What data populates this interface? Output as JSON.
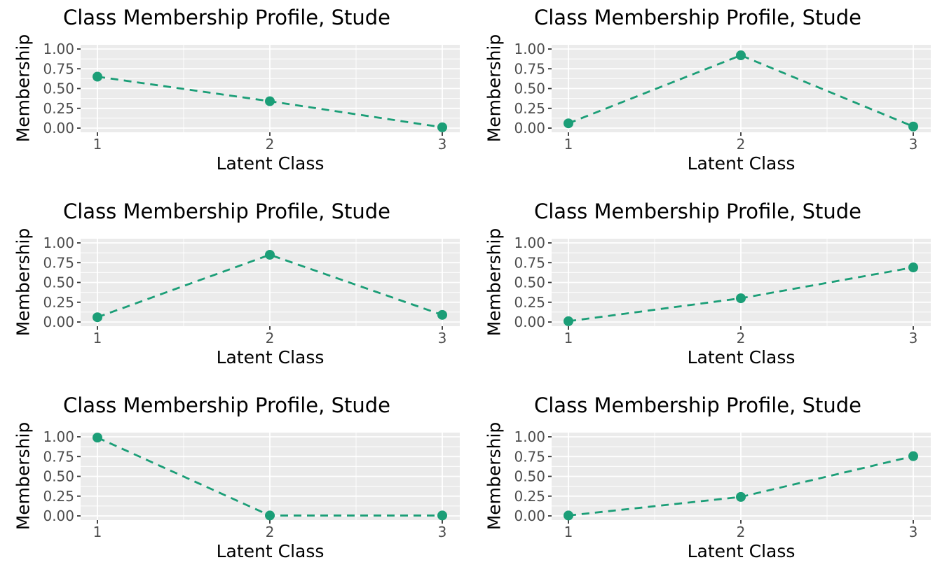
{
  "style": {
    "accent": "#1b9e77",
    "panel_bg": "#ebebeb",
    "grid_color": "#ffffff",
    "tick_label_color": "#4d4d4d",
    "tick_mark_color": "#333333",
    "title_color": "#000000"
  },
  "chart_data": [
    {
      "type": "line",
      "title": "Class Membership Profile, Stude",
      "xlabel": "Latent Class",
      "ylabel": "Membership",
      "x": [
        1,
        2,
        3
      ],
      "values": [
        0.65,
        0.34,
        0.01
      ],
      "xticks": [
        "1",
        "2",
        "3"
      ],
      "yticks": [
        "1.00",
        "0.75",
        "0.50",
        "0.25",
        "0.00"
      ],
      "ylim": [
        0,
        1
      ],
      "line_style": "dashed",
      "grid": true,
      "legend": false
    },
    {
      "type": "line",
      "title": "Class Membership Profile, Stude",
      "xlabel": "Latent Class",
      "ylabel": "Membership",
      "x": [
        1,
        2,
        3
      ],
      "values": [
        0.06,
        0.92,
        0.02
      ],
      "xticks": [
        "1",
        "2",
        "3"
      ],
      "yticks": [
        "1.00",
        "0.75",
        "0.50",
        "0.25",
        "0.00"
      ],
      "ylim": [
        0,
        1
      ],
      "line_style": "dashed",
      "grid": true,
      "legend": false
    },
    {
      "type": "line",
      "title": "Class Membership Profile, Stude",
      "xlabel": "Latent Class",
      "ylabel": "Membership",
      "x": [
        1,
        2,
        3
      ],
      "values": [
        0.06,
        0.85,
        0.09
      ],
      "xticks": [
        "1",
        "2",
        "3"
      ],
      "yticks": [
        "1.00",
        "0.75",
        "0.50",
        "0.25",
        "0.00"
      ],
      "ylim": [
        0,
        1
      ],
      "line_style": "dashed",
      "grid": true,
      "legend": false
    },
    {
      "type": "line",
      "title": "Class Membership Profile, Stude",
      "xlabel": "Latent Class",
      "ylabel": "Membership",
      "x": [
        1,
        2,
        3
      ],
      "values": [
        0.01,
        0.3,
        0.69
      ],
      "xticks": [
        "1",
        "2",
        "3"
      ],
      "yticks": [
        "1.00",
        "0.75",
        "0.50",
        "0.25",
        "0.00"
      ],
      "ylim": [
        0,
        1
      ],
      "line_style": "dashed",
      "grid": true,
      "legend": false
    },
    {
      "type": "line",
      "title": "Class Membership Profile, Stude",
      "xlabel": "Latent Class",
      "ylabel": "Membership",
      "x": [
        1,
        2,
        3
      ],
      "values": [
        0.99,
        0.005,
        0.005
      ],
      "xticks": [
        "1",
        "2",
        "3"
      ],
      "yticks": [
        "1.00",
        "0.75",
        "0.50",
        "0.25",
        "0.00"
      ],
      "ylim": [
        0,
        1
      ],
      "line_style": "dashed",
      "grid": true,
      "legend": false
    },
    {
      "type": "line",
      "title": "Class Membership Profile, Stude",
      "xlabel": "Latent Class",
      "ylabel": "Membership",
      "x": [
        1,
        2,
        3
      ],
      "values": [
        0.005,
        0.24,
        0.755
      ],
      "xticks": [
        "1",
        "2",
        "3"
      ],
      "yticks": [
        "1.00",
        "0.75",
        "0.50",
        "0.25",
        "0.00"
      ],
      "ylim": [
        0,
        1
      ],
      "line_style": "dashed",
      "grid": true,
      "legend": false
    }
  ]
}
